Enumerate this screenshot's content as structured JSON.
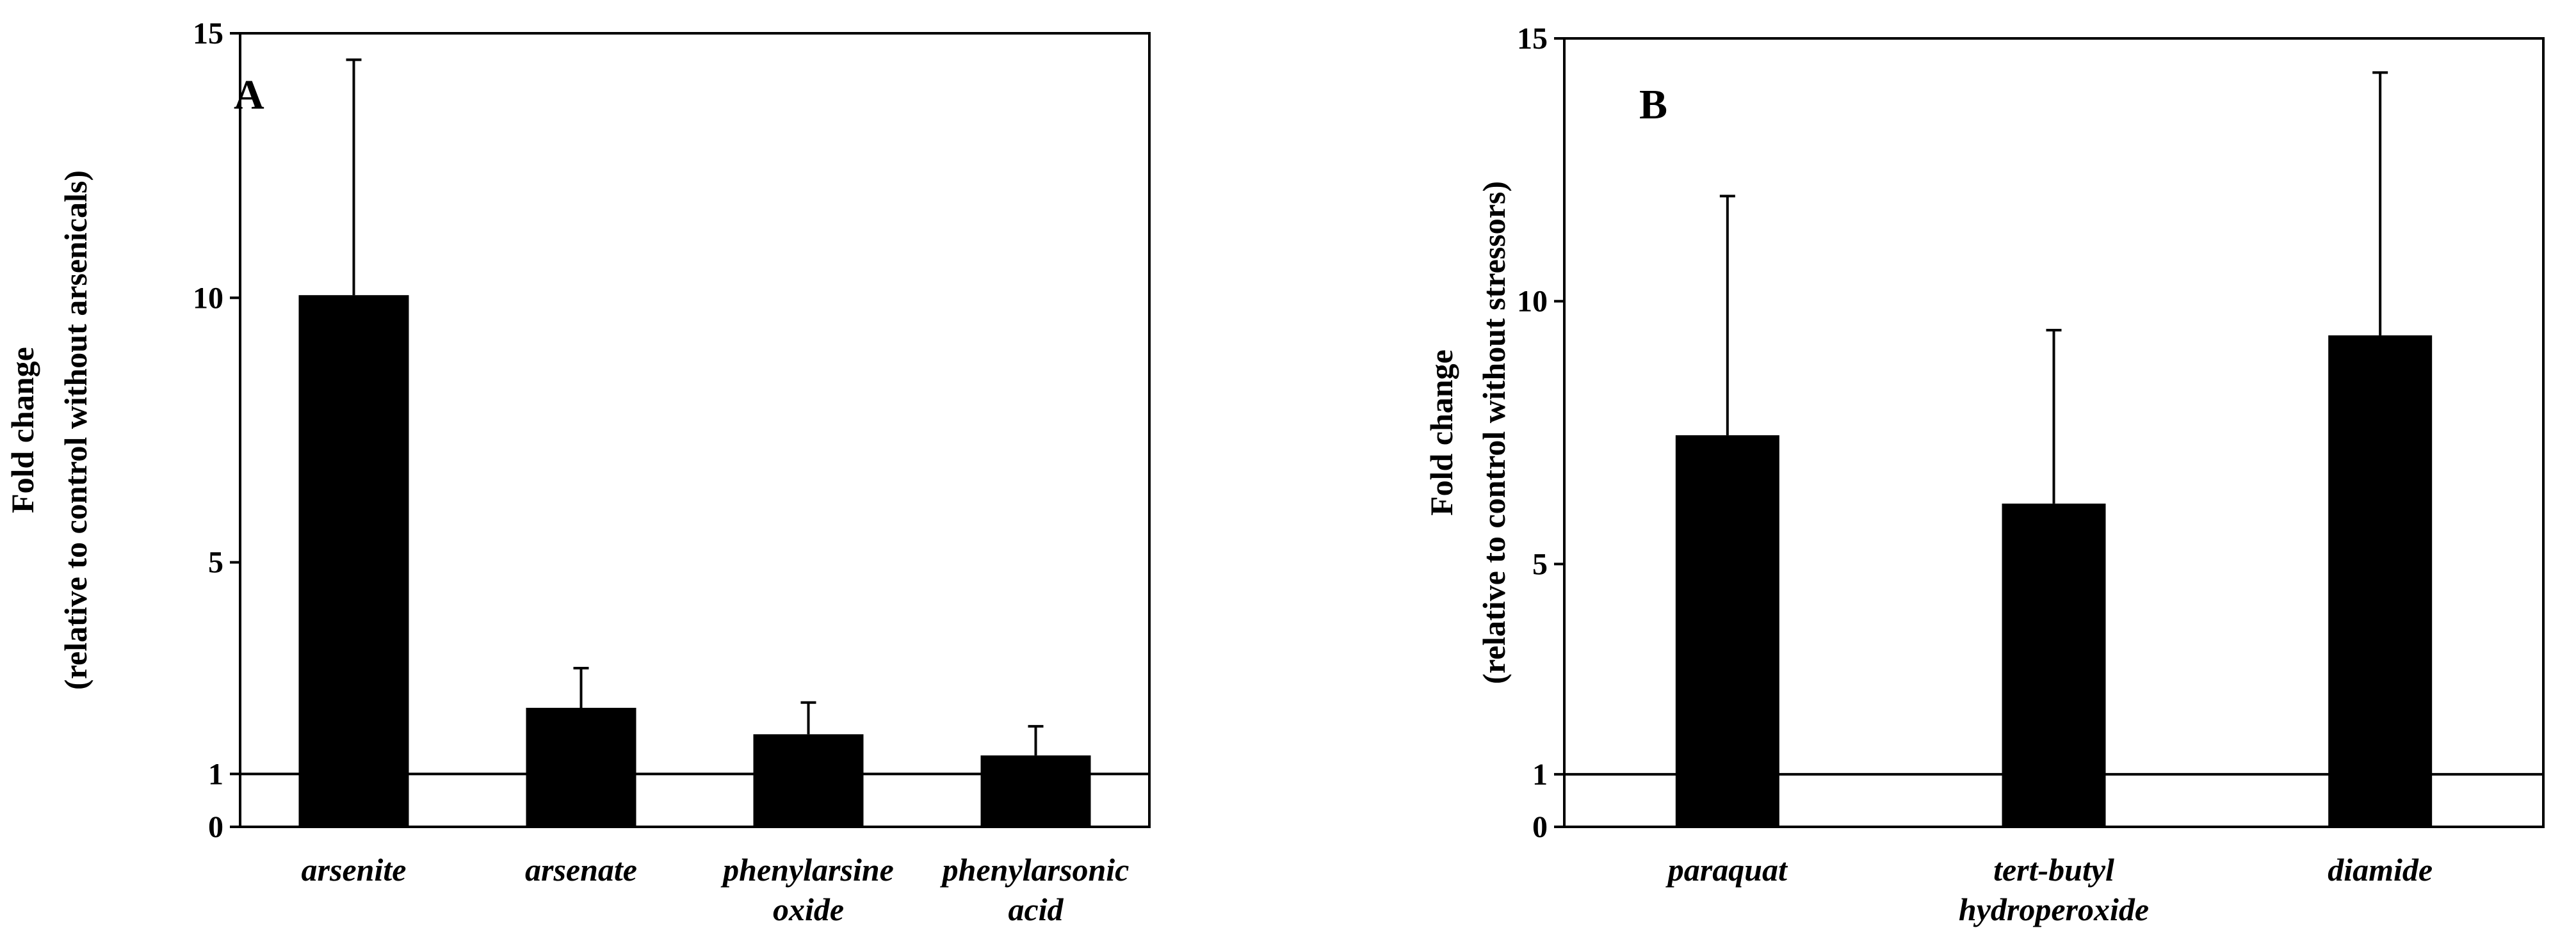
{
  "chart_data": [
    {
      "type": "bar",
      "panel_label": "A",
      "title": "",
      "xlabel": "",
      "ylabel": [
        "Fold change",
        "(relative to control without arsenicals)"
      ],
      "ylim": [
        0,
        15
      ],
      "yticks": [
        "0",
        "1",
        "5",
        "10",
        "15"
      ],
      "reference_line": 1,
      "categories": [
        [
          "arsenite"
        ],
        [
          "arsenate"
        ],
        [
          "phenylarsine",
          "oxide"
        ],
        [
          "phenylarsonic",
          "acid"
        ]
      ],
      "values": [
        10.05,
        2.25,
        1.75,
        1.35
      ],
      "error_upper": [
        14.5,
        3.0,
        2.35,
        1.9
      ],
      "bar_color": "#000000",
      "grid": false,
      "legend": "none"
    },
    {
      "type": "bar",
      "panel_label": "B",
      "title": "",
      "xlabel": "",
      "ylabel": [
        "Fold change",
        "(relative to control without stressors)"
      ],
      "ylim": [
        0,
        15
      ],
      "yticks": [
        "0",
        "1",
        "5",
        "10",
        "15"
      ],
      "reference_line": 1,
      "categories": [
        [
          "paraquat"
        ],
        [
          "tert-butyl",
          "hydroperoxide"
        ],
        [
          "diamide"
        ]
      ],
      "values": [
        7.45,
        6.15,
        9.35
      ],
      "error_upper": [
        12.0,
        9.45,
        14.35
      ],
      "bar_color": "#000000",
      "grid": false,
      "legend": "none"
    }
  ]
}
